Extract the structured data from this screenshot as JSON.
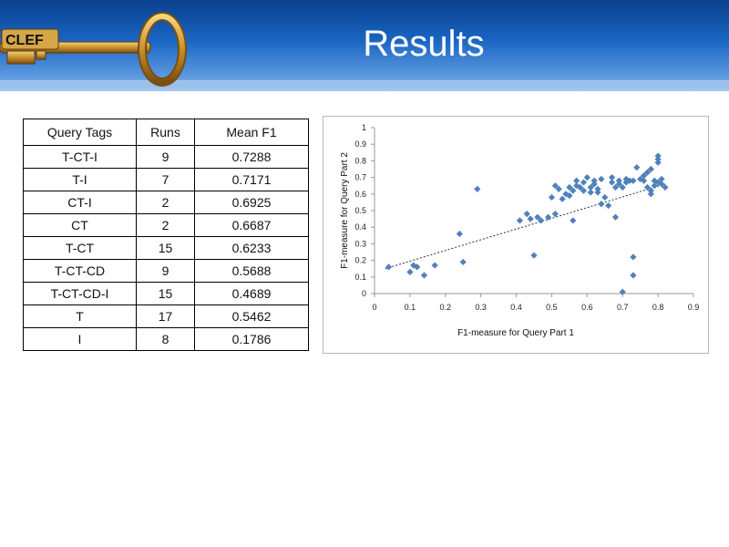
{
  "slide": {
    "title": "Results"
  },
  "logo": {
    "text": "CLEF"
  },
  "table": {
    "headers": [
      "Query Tags",
      "Runs",
      "Mean F1"
    ],
    "rows": [
      [
        "T-CT-I",
        "9",
        "0.7288"
      ],
      [
        "T-I",
        "7",
        "0.7171"
      ],
      [
        "CT-I",
        "2",
        "0.6925"
      ],
      [
        "CT",
        "2",
        "0.6687"
      ],
      [
        "T-CT",
        "15",
        "0.6233"
      ],
      [
        "T-CT-CD",
        "9",
        "0.5688"
      ],
      [
        "T-CT-CD-I",
        "15",
        "0.4689"
      ],
      [
        "T",
        "17",
        "0.5462"
      ],
      [
        "I",
        "8",
        "0.1786"
      ]
    ]
  },
  "chart_data": {
    "type": "scatter",
    "xlabel": "F1-measure for Query Part 1",
    "ylabel": "F1-measure for Query Part 2",
    "xlim": [
      0,
      0.9
    ],
    "ylim": [
      0,
      1
    ],
    "x_ticks": [
      "0",
      "0.1",
      "0.2",
      "0.3",
      "0.4",
      "0.5",
      "0.6",
      "0.7",
      "0.8",
      "0.9"
    ],
    "y_ticks": [
      "0",
      "0.1",
      "0.2",
      "0.3",
      "0.4",
      "0.5",
      "0.6",
      "0.7",
      "0.8",
      "0.9",
      "1"
    ],
    "marker_color": "#4f81bd",
    "trendline": {
      "from": [
        0.03,
        0.15
      ],
      "to": [
        0.82,
        0.66
      ],
      "color": "#333333"
    },
    "points": [
      [
        0.04,
        0.16
      ],
      [
        0.1,
        0.13
      ],
      [
        0.11,
        0.17
      ],
      [
        0.12,
        0.16
      ],
      [
        0.14,
        0.11
      ],
      [
        0.17,
        0.17
      ],
      [
        0.24,
        0.36
      ],
      [
        0.25,
        0.19
      ],
      [
        0.29,
        0.63
      ],
      [
        0.41,
        0.44
      ],
      [
        0.43,
        0.48
      ],
      [
        0.44,
        0.45
      ],
      [
        0.45,
        0.23
      ],
      [
        0.46,
        0.46
      ],
      [
        0.47,
        0.44
      ],
      [
        0.49,
        0.46
      ],
      [
        0.5,
        0.58
      ],
      [
        0.51,
        0.48
      ],
      [
        0.51,
        0.65
      ],
      [
        0.52,
        0.63
      ],
      [
        0.53,
        0.57
      ],
      [
        0.54,
        0.6
      ],
      [
        0.55,
        0.64
      ],
      [
        0.55,
        0.59
      ],
      [
        0.56,
        0.62
      ],
      [
        0.56,
        0.44
      ],
      [
        0.57,
        0.68
      ],
      [
        0.57,
        0.65
      ],
      [
        0.58,
        0.64
      ],
      [
        0.59,
        0.67
      ],
      [
        0.59,
        0.62
      ],
      [
        0.6,
        0.7
      ],
      [
        0.61,
        0.64
      ],
      [
        0.61,
        0.61
      ],
      [
        0.62,
        0.68
      ],
      [
        0.62,
        0.66
      ],
      [
        0.63,
        0.63
      ],
      [
        0.63,
        0.61
      ],
      [
        0.64,
        0.69
      ],
      [
        0.64,
        0.54
      ],
      [
        0.65,
        0.58
      ],
      [
        0.66,
        0.53
      ],
      [
        0.67,
        0.7
      ],
      [
        0.67,
        0.67
      ],
      [
        0.68,
        0.64
      ],
      [
        0.68,
        0.46
      ],
      [
        0.69,
        0.68
      ],
      [
        0.69,
        0.66
      ],
      [
        0.7,
        0.64
      ],
      [
        0.7,
        0.01
      ],
      [
        0.71,
        0.67
      ],
      [
        0.71,
        0.69
      ],
      [
        0.72,
        0.68
      ],
      [
        0.73,
        0.68
      ],
      [
        0.73,
        0.22
      ],
      [
        0.73,
        0.11
      ],
      [
        0.74,
        0.76
      ],
      [
        0.75,
        0.69
      ],
      [
        0.76,
        0.68
      ],
      [
        0.76,
        0.71
      ],
      [
        0.77,
        0.73
      ],
      [
        0.77,
        0.64
      ],
      [
        0.78,
        0.75
      ],
      [
        0.78,
        0.6
      ],
      [
        0.78,
        0.62
      ],
      [
        0.79,
        0.68
      ],
      [
        0.79,
        0.65
      ],
      [
        0.8,
        0.81
      ],
      [
        0.8,
        0.83
      ],
      [
        0.8,
        0.79
      ],
      [
        0.8,
        0.67
      ],
      [
        0.81,
        0.69
      ],
      [
        0.81,
        0.66
      ],
      [
        0.82,
        0.64
      ]
    ]
  }
}
